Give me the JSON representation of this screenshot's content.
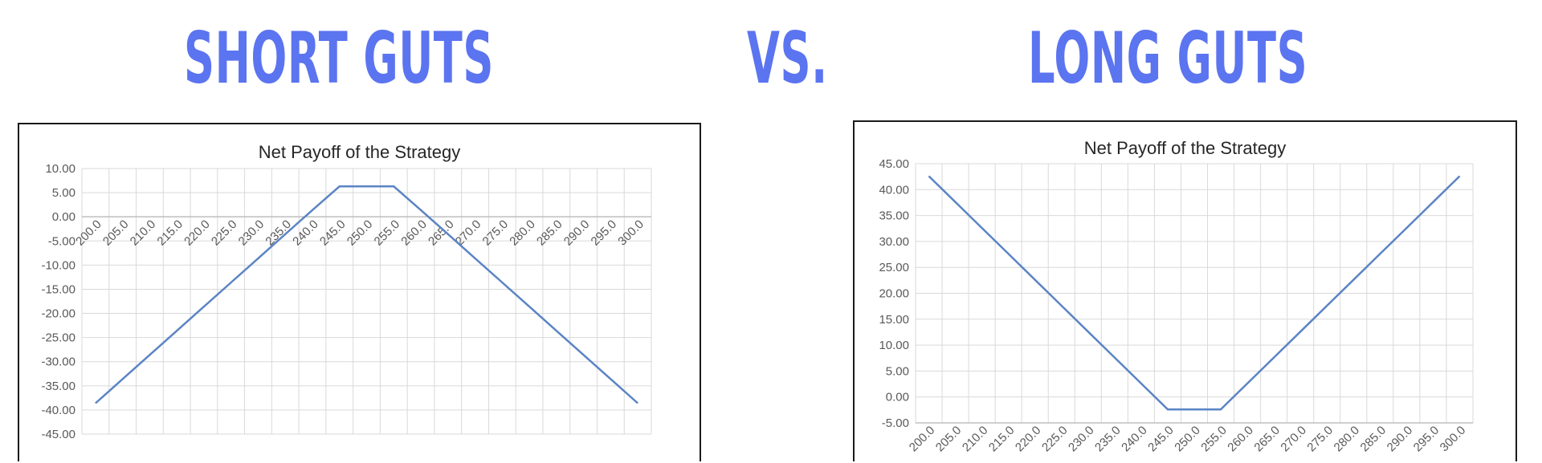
{
  "headline": {
    "left": "SHORT GUTS",
    "vs": "VS.",
    "right": "LONG GUTS",
    "color": "#5b74f0"
  },
  "chart_data": [
    {
      "type": "line",
      "title": "Net Payoff of the Strategy",
      "x": [
        200,
        205,
        210,
        215,
        220,
        225,
        230,
        235,
        240,
        245,
        250,
        255,
        260,
        265,
        270,
        275,
        280,
        285,
        290,
        295,
        300
      ],
      "x_tick_labels": [
        "200.0",
        "205.0",
        "210.0",
        "215.0",
        "220.0",
        "225.0",
        "230.0",
        "235.0",
        "240.0",
        "245.0",
        "250.0",
        "255.0",
        "260.0",
        "265.0",
        "270.0",
        "275.0",
        "280.0",
        "285.0",
        "290.0",
        "295.0",
        "300.0"
      ],
      "series": [
        {
          "values": [
            -38.6,
            -33.6,
            -28.6,
            -23.6,
            -18.6,
            -13.6,
            -8.6,
            -3.6,
            1.4,
            6.3,
            6.3,
            6.3,
            1.4,
            -3.6,
            -8.6,
            -13.6,
            -18.6,
            -23.6,
            -28.6,
            -33.6,
            -38.6
          ],
          "color": "#5b84c4"
        }
      ],
      "ylim": [
        -45,
        10
      ],
      "y_ticks": [
        10,
        5,
        0,
        -5,
        -10,
        -15,
        -20,
        -25,
        -30,
        -35,
        -40,
        -45
      ],
      "y_tick_labels": [
        "10.00",
        "5.00",
        "0.00",
        "-5.00",
        "-10.00",
        "-15.00",
        "-20.00",
        "-25.00",
        "-30.00",
        "-35.00",
        "-40.00",
        "-45.00"
      ],
      "grid": true,
      "xaxis_at_zero": true
    },
    {
      "type": "line",
      "title": "Net Payoff of the Strategy",
      "x": [
        200,
        205,
        210,
        215,
        220,
        225,
        230,
        235,
        240,
        245,
        250,
        255,
        260,
        265,
        270,
        275,
        280,
        285,
        290,
        295,
        300
      ],
      "x_tick_labels": [
        "200.0",
        "205.0",
        "210.0",
        "215.0",
        "220.0",
        "225.0",
        "230.0",
        "235.0",
        "240.0",
        "245.0",
        "250.0",
        "255.0",
        "260.0",
        "265.0",
        "270.0",
        "275.0",
        "280.0",
        "285.0",
        "290.0",
        "295.0",
        "300.0"
      ],
      "series": [
        {
          "values": [
            42.6,
            37.6,
            32.6,
            27.6,
            22.6,
            17.6,
            12.6,
            7.6,
            2.6,
            -2.4,
            -2.4,
            -2.4,
            2.6,
            7.6,
            12.6,
            17.6,
            22.6,
            27.6,
            32.6,
            37.6,
            42.6
          ],
          "color": "#5b84c4"
        }
      ],
      "ylim": [
        -5,
        45
      ],
      "y_ticks": [
        45,
        40,
        35,
        30,
        25,
        20,
        15,
        10,
        5,
        0,
        -5
      ],
      "y_tick_labels": [
        "45.00",
        "40.00",
        "35.00",
        "30.00",
        "25.00",
        "20.00",
        "15.00",
        "10.00",
        "5.00",
        "0.00",
        "-5.00"
      ],
      "grid": true,
      "xaxis_at_zero": false
    }
  ]
}
